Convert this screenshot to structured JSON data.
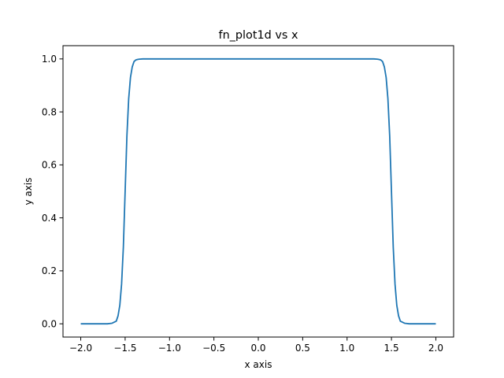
{
  "chart_data": {
    "type": "line",
    "title": "fn_plot1d vs x",
    "xlabel": "x axis",
    "ylabel": "y axis",
    "xlim": [
      -2.2,
      2.2
    ],
    "ylim": [
      -0.05,
      1.05
    ],
    "xticks": [
      -2.0,
      -1.5,
      -1.0,
      -0.5,
      0.0,
      0.5,
      1.0,
      1.5,
      2.0
    ],
    "xtick_labels": [
      "−2.0",
      "−1.5",
      "−1.0",
      "−0.5",
      "0.0",
      "0.5",
      "1.0",
      "1.5",
      "2.0"
    ],
    "yticks": [
      0.0,
      0.2,
      0.4,
      0.6,
      0.8,
      1.0
    ],
    "ytick_labels": [
      "0.0",
      "0.2",
      "0.4",
      "0.6",
      "0.8",
      "1.0"
    ],
    "grid": false,
    "series": [
      {
        "color": "#1f77b4",
        "x": [
          -2.0,
          -1.9,
          -1.8,
          -1.7,
          -1.65,
          -1.6,
          -1.58,
          -1.56,
          -1.54,
          -1.52,
          -1.5,
          -1.48,
          -1.46,
          -1.44,
          -1.42,
          -1.4,
          -1.38,
          -1.36,
          -1.34,
          -1.3,
          -1.2,
          -1.0,
          -0.5,
          0.0,
          0.5,
          1.0,
          1.2,
          1.3,
          1.34,
          1.36,
          1.38,
          1.4,
          1.42,
          1.44,
          1.46,
          1.48,
          1.5,
          1.52,
          1.54,
          1.56,
          1.58,
          1.6,
          1.65,
          1.7,
          1.8,
          1.9,
          2.0
        ],
        "y": [
          0.0,
          0.0,
          0.0,
          0.0,
          0.002,
          0.01,
          0.03,
          0.07,
          0.15,
          0.29,
          0.5,
          0.71,
          0.85,
          0.93,
          0.97,
          0.99,
          0.996,
          0.998,
          0.999,
          1.0,
          1.0,
          1.0,
          1.0,
          1.0,
          1.0,
          1.0,
          1.0,
          1.0,
          0.999,
          0.998,
          0.996,
          0.99,
          0.97,
          0.93,
          0.85,
          0.71,
          0.5,
          0.29,
          0.15,
          0.07,
          0.03,
          0.01,
          0.002,
          0.0,
          0.0,
          0.0,
          0.0
        ]
      }
    ]
  }
}
